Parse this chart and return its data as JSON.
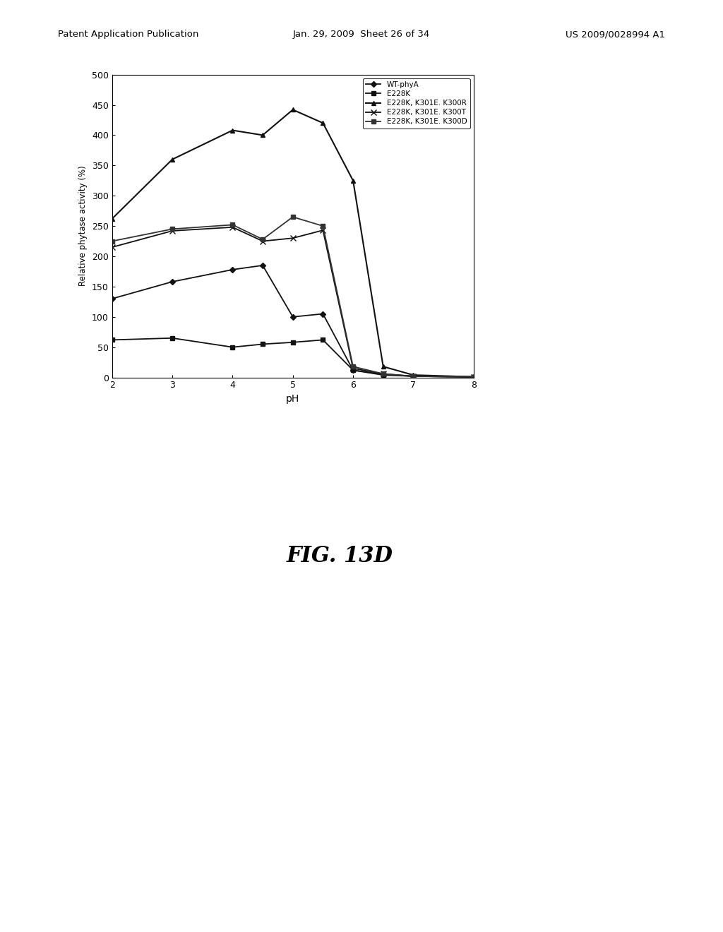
{
  "title": "",
  "xlabel": "pH",
  "ylabel": "Relative phytase activity (%)",
  "xlim": [
    2,
    8
  ],
  "ylim": [
    0,
    500
  ],
  "xticks": [
    2,
    3,
    4,
    5,
    6,
    7,
    8
  ],
  "yticks": [
    0,
    50,
    100,
    150,
    200,
    250,
    300,
    350,
    400,
    450,
    500
  ],
  "fig_label": "FIG. 13D",
  "header_left": "Patent Application Publication",
  "header_mid": "Jan. 29, 2009  Sheet 26 of 34",
  "header_right": "US 2009/0028994 A1",
  "series": [
    {
      "label": "WT-phyA",
      "marker": "D",
      "color": "#111111",
      "linewidth": 1.3,
      "markersize": 4,
      "x": [
        2,
        3,
        4,
        4.5,
        5,
        5.5,
        6,
        6.5,
        7,
        8
      ],
      "y": [
        130,
        158,
        178,
        185,
        100,
        105,
        12,
        5,
        2,
        1
      ]
    },
    {
      "label": "E228K",
      "marker": "s",
      "color": "#111111",
      "linewidth": 1.3,
      "markersize": 4,
      "x": [
        2,
        3,
        4,
        4.5,
        5,
        5.5,
        6,
        6.5,
        7,
        8
      ],
      "y": [
        62,
        65,
        50,
        55,
        58,
        62,
        12,
        4,
        2,
        1
      ]
    },
    {
      "label": "E228K, K301E. K300R",
      "marker": "^",
      "color": "#111111",
      "linewidth": 1.5,
      "markersize": 5,
      "x": [
        2,
        3,
        4,
        4.5,
        5,
        5.5,
        6,
        6.5,
        7,
        8
      ],
      "y": [
        262,
        360,
        408,
        400,
        442,
        420,
        325,
        18,
        4,
        1
      ]
    },
    {
      "label": "E228K, K301E. K300T",
      "marker": "x",
      "color": "#111111",
      "linewidth": 1.3,
      "markersize": 6,
      "x": [
        2,
        3,
        4,
        4.5,
        5,
        5.5,
        6,
        6.5,
        7,
        8
      ],
      "y": [
        215,
        242,
        248,
        225,
        230,
        243,
        15,
        6,
        2,
        1
      ]
    },
    {
      "label": "E228K, K301E. K300D",
      "marker": "s",
      "color": "#333333",
      "linewidth": 1.3,
      "markersize": 4,
      "x": [
        2,
        3,
        4,
        4.5,
        5,
        5.5,
        6,
        6.5,
        7,
        8
      ],
      "y": [
        225,
        245,
        252,
        228,
        265,
        250,
        18,
        6,
        2,
        1
      ]
    }
  ]
}
